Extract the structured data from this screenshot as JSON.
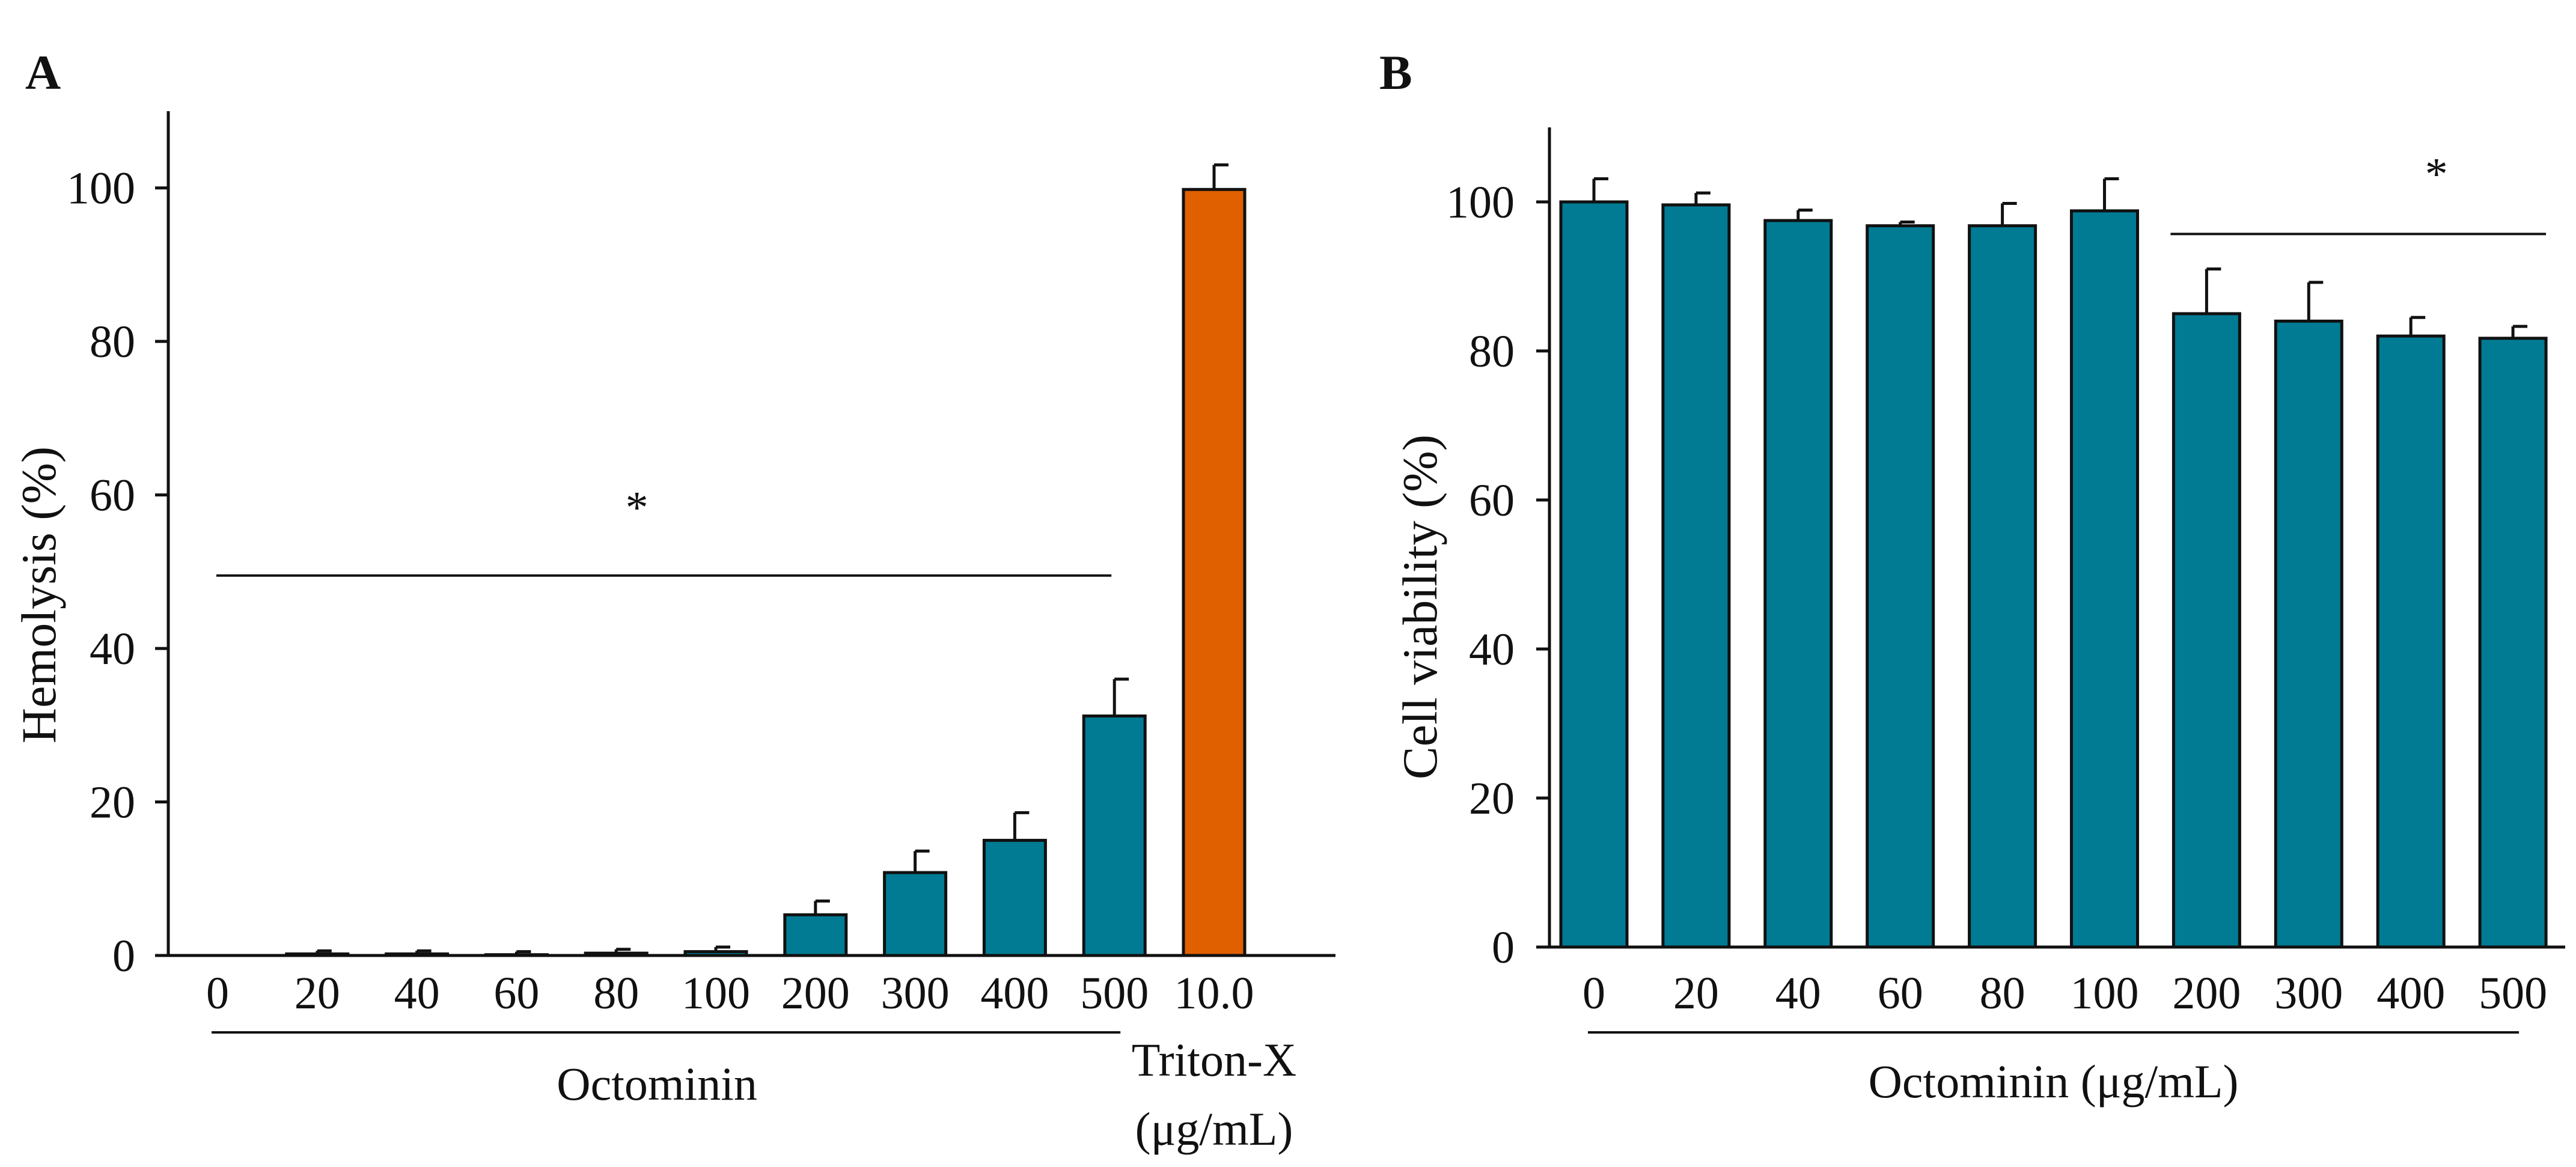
{
  "colors": {
    "bar": "#007b93",
    "positive_control": "#e06000",
    "ink": "#111111"
  },
  "chart_data": [
    {
      "panel": "A",
      "type": "bar",
      "ylabel": "Hemolysis (%)",
      "yticks": [
        "0",
        "20",
        "40",
        "60",
        "80",
        "100"
      ],
      "ylim": [
        0,
        110
      ],
      "categories": [
        "0",
        "20",
        "40",
        "60",
        "80",
        "100",
        "200",
        "300",
        "400",
        "500",
        "10.0"
      ],
      "values": [
        0,
        0.2,
        0.2,
        0.1,
        0.3,
        0.5,
        5.3,
        10.8,
        15.0,
        31.2,
        99.8
      ],
      "errors": [
        0,
        0.4,
        0.4,
        0.4,
        0.5,
        0.6,
        1.8,
        2.8,
        3.6,
        4.8,
        3.2
      ],
      "bar_colors": [
        "bar",
        "bar",
        "bar",
        "bar",
        "bar",
        "bar",
        "bar",
        "bar",
        "bar",
        "bar",
        "positive_control"
      ],
      "groups": [
        {
          "label": "Octominin",
          "range": [
            0,
            9
          ]
        },
        {
          "label": "Triton-X",
          "range": [
            10,
            10
          ]
        }
      ],
      "unit_label": "(μg/mL)",
      "significance": {
        "label": "*",
        "y": 49.5,
        "range": [
          0,
          9
        ]
      },
      "grid": false,
      "legend": "none"
    },
    {
      "panel": "B",
      "type": "bar",
      "ylabel": "Cell viability (%)",
      "yticks": [
        "0",
        "20",
        "40",
        "60",
        "80",
        "100"
      ],
      "ylim": [
        0,
        110
      ],
      "categories": [
        "0",
        "20",
        "40",
        "60",
        "80",
        "100",
        "200",
        "300",
        "400",
        "500"
      ],
      "values": [
        100,
        99.6,
        97.5,
        96.8,
        96.8,
        98.8,
        85.0,
        84.0,
        82.0,
        81.7
      ],
      "errors": [
        3.1,
        1.6,
        1.4,
        0.5,
        3.0,
        4.3,
        6.0,
        5.2,
        2.5,
        1.6
      ],
      "bar_colors": [
        "bar",
        "bar",
        "bar",
        "bar",
        "bar",
        "bar",
        "bar",
        "bar",
        "bar",
        "bar"
      ],
      "groups": [
        {
          "label": "Octominin (μg/mL)",
          "range": [
            0,
            9
          ]
        }
      ],
      "significance": {
        "label": "*",
        "y": 95.7,
        "range": [
          6,
          9
        ]
      },
      "grid": false,
      "legend": "none"
    }
  ]
}
